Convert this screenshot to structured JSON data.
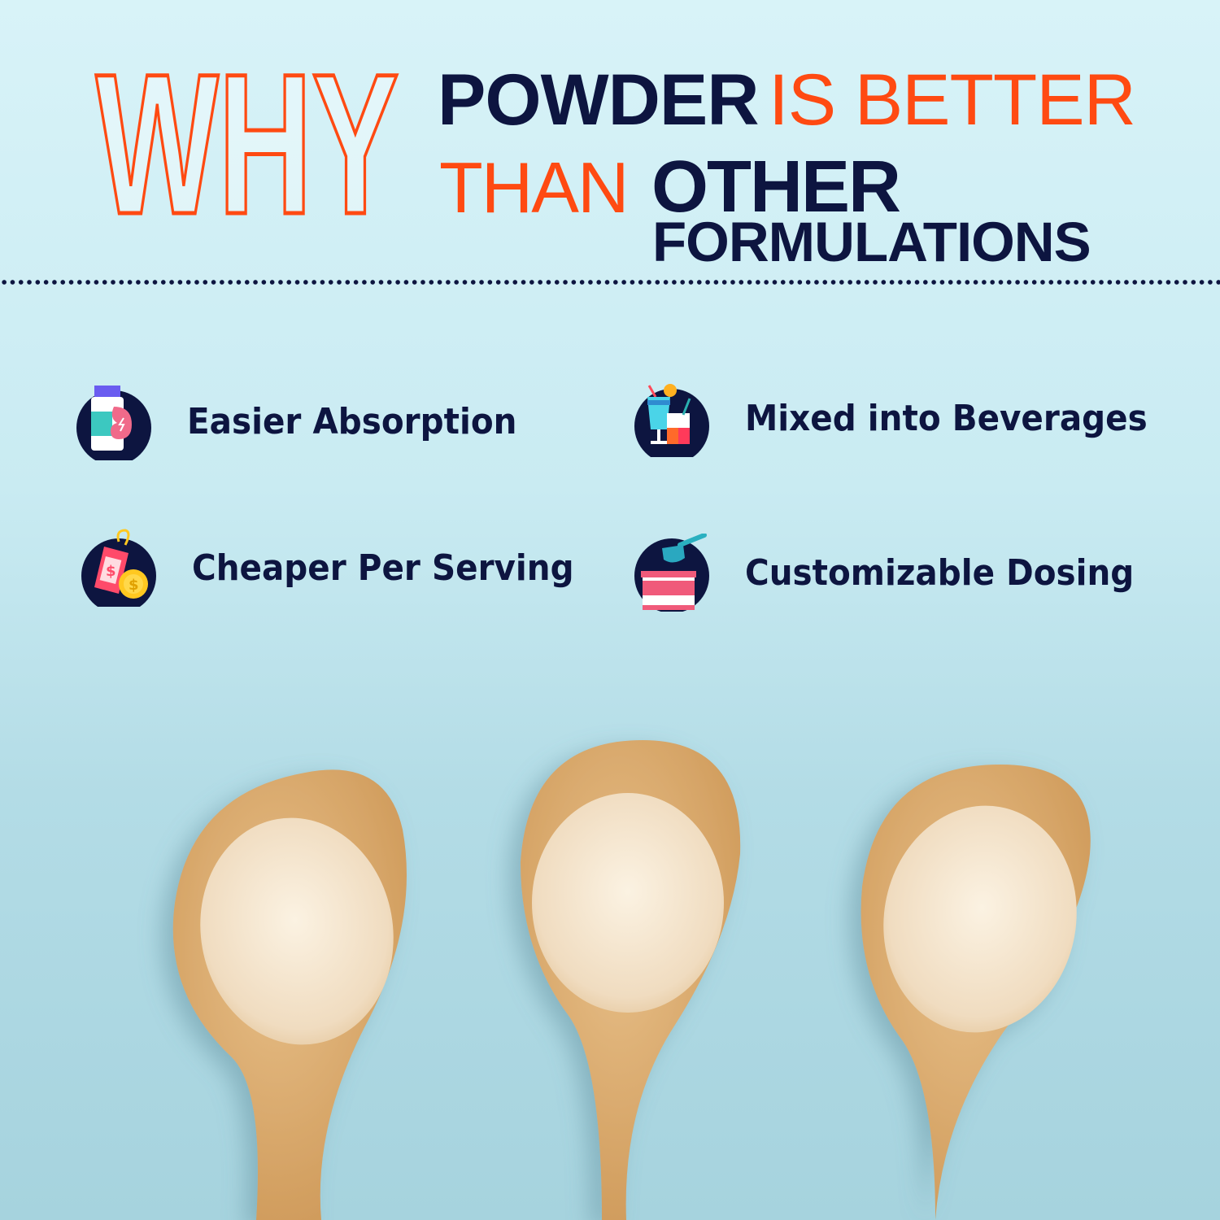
{
  "headline": {
    "why": "WHY",
    "line1_a": "POWDER",
    "line1_b": "IS BETTER",
    "line2_a": "THAN",
    "line2_b": "OTHER",
    "line3": "FORMULATIONS"
  },
  "colors": {
    "navy": "#0d1540",
    "orange": "#ff4a12",
    "background": "#c9ebf2"
  },
  "benefits": [
    {
      "label": "Easier Absorption",
      "icon": "supplement-stomach-icon"
    },
    {
      "label": "Mixed into Beverages",
      "icon": "beverages-icon"
    },
    {
      "label": "Cheaper Per Serving",
      "icon": "price-tag-coin-icon"
    },
    {
      "label": "Customizable Dosing",
      "icon": "scoop-container-icon"
    }
  ]
}
